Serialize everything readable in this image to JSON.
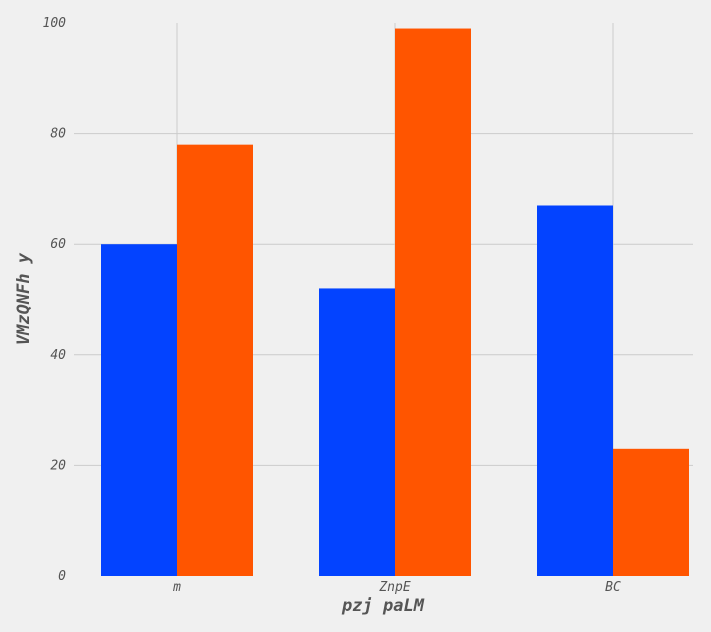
{
  "chart_data": {
    "type": "bar",
    "categories": [
      "m",
      "ZnpE",
      "BC"
    ],
    "series": [
      {
        "values": [
          60,
          52,
          67
        ],
        "color": "#0343ff"
      },
      {
        "values": [
          78,
          99,
          23
        ],
        "color": "#ff5500"
      }
    ],
    "xlabel": "pzj paLM",
    "ylabel": "VMzQNFh y",
    "ylim": [
      0,
      100
    ],
    "yticks": [
      0,
      20,
      40,
      60,
      80,
      100
    ],
    "grid": true,
    "legend": "none"
  }
}
